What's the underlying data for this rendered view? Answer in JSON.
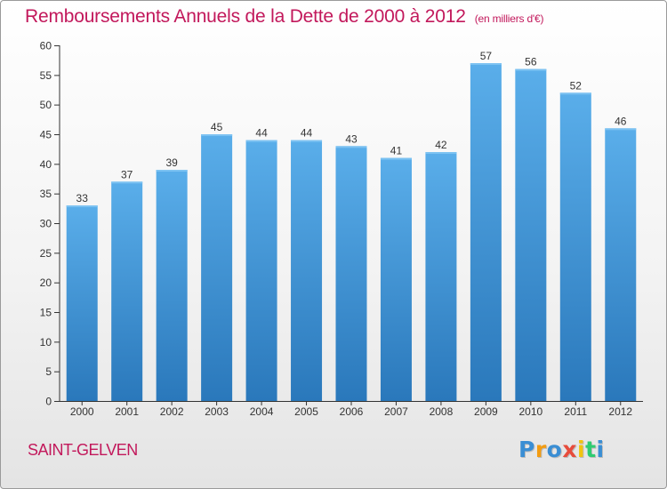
{
  "chart_data": {
    "type": "bar",
    "title": "Remboursements Annuels de la Dette de 2000 à 2012",
    "subtitle": "(en milliers d'€)",
    "categories": [
      "2000",
      "2001",
      "2002",
      "2003",
      "2004",
      "2005",
      "2006",
      "2007",
      "2008",
      "2009",
      "2010",
      "2011",
      "2012"
    ],
    "values": [
      33,
      37,
      39,
      45,
      44,
      44,
      43,
      41,
      42,
      57,
      56,
      52,
      46
    ],
    "ylim": [
      0,
      60
    ],
    "yticks": [
      0,
      5,
      10,
      15,
      20,
      25,
      30,
      35,
      40,
      45,
      50,
      55,
      60
    ],
    "xlabel": "",
    "ylabel": "",
    "grid": false,
    "data_labels": true,
    "bar_color": "#3d94dc"
  },
  "place_name": "SAINT-GELVEN",
  "logo": {
    "text": "Proxiti",
    "letters": [
      "P",
      "r",
      "o",
      "x",
      "i",
      "t",
      "i"
    ],
    "colors": [
      "#3a8ed4",
      "#f39c12",
      "#3a8ed4",
      "#e74c3c",
      "#f1c40f",
      "#2ecc71",
      "#3a8ed4"
    ]
  },
  "colors": {
    "title": "#c2185b",
    "axis": "#333333"
  }
}
